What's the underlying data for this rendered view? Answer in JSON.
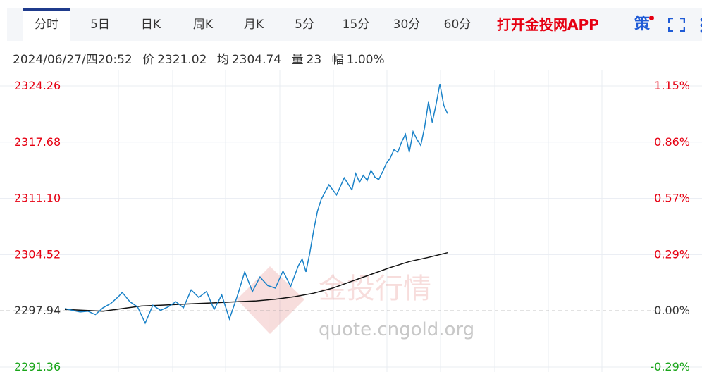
{
  "tabs": [
    {
      "label": "分时",
      "active": true
    },
    {
      "label": "5日",
      "active": false
    },
    {
      "label": "日K",
      "active": false
    },
    {
      "label": "周K",
      "active": false
    },
    {
      "label": "月K",
      "active": false
    },
    {
      "label": "5分",
      "active": false
    },
    {
      "label": "15分",
      "active": false
    },
    {
      "label": "30分",
      "active": false
    },
    {
      "label": "60分",
      "active": false
    }
  ],
  "promo_label": "打开金投网APP",
  "strategy_label": "策",
  "info": {
    "datetime": "2024/06/27/四20:52",
    "price_label": "价",
    "price": "2321.02",
    "avg_label": "均",
    "avg": "2304.74",
    "volume_label": "量",
    "volume": "23",
    "change_label": "幅",
    "change": "1.00%"
  },
  "watermark": {
    "brand": "金投行情",
    "url": "quote.cngold.org"
  },
  "colors": {
    "price_line": "#1a82c8",
    "avg_line": "#111111",
    "up": "#e60012",
    "down": "#1aa51a",
    "grid": "#e8ecf2",
    "baseline": "#8a8a8a"
  },
  "chart_data": {
    "type": "line",
    "title": "",
    "xlabel": "",
    "ylabel": "",
    "ylim": [
      2291.36,
      2324.26
    ],
    "y_ticks_left": [
      "2324.26",
      "2317.68",
      "2311.10",
      "2304.52",
      "2297.94",
      "2291.36"
    ],
    "y_ticks_right": [
      "1.15%",
      "0.86%",
      "0.57%",
      "0.29%",
      "0.00%",
      "-0.29%"
    ],
    "y_tick_values": [
      2324.26,
      2317.68,
      2311.1,
      2304.52,
      2297.94,
      2291.36
    ],
    "baseline": 2297.94,
    "x_range": [
      0,
      100
    ],
    "series": [
      {
        "key": "price",
        "x": [
          0,
          2,
          4,
          6,
          8,
          10,
          12,
          14,
          15,
          17,
          19,
          21,
          23,
          25,
          27,
          29,
          31,
          33,
          35,
          37,
          39,
          41,
          43,
          45,
          47,
          49,
          51,
          53,
          55,
          57,
          59,
          61,
          62,
          63,
          64,
          65,
          66,
          67,
          69,
          71,
          73,
          75,
          76,
          77,
          78,
          79,
          80,
          81,
          82,
          83,
          84,
          85,
          86,
          87,
          88,
          89,
          90,
          91,
          92,
          93,
          94,
          95,
          96,
          97,
          98,
          99,
          100
        ],
        "values": [
          2298.2,
          2298.0,
          2297.8,
          2297.9,
          2297.5,
          2298.3,
          2298.8,
          2299.6,
          2300.1,
          2299.0,
          2298.4,
          2296.5,
          2298.6,
          2298.0,
          2298.4,
          2299.0,
          2298.3,
          2300.4,
          2299.5,
          2300.2,
          2298.1,
          2299.8,
          2297.0,
          2299.6,
          2302.5,
          2300.2,
          2301.9,
          2300.9,
          2300.6,
          2302.6,
          2300.8,
          2303.2,
          2304.0,
          2302.5,
          2304.7,
          2307.3,
          2309.6,
          2311.0,
          2312.7,
          2311.5,
          2313.5,
          2312.1,
          2314.0,
          2313.0,
          2313.8,
          2313.2,
          2314.4,
          2313.6,
          2313.3,
          2314.2,
          2315.2,
          2315.8,
          2316.8,
          2316.5,
          2317.7,
          2318.6,
          2316.5,
          2318.9,
          2318.0,
          2317.3,
          2319.4,
          2322.4,
          2320.0,
          2322.1,
          2324.5,
          2322.0,
          2321.02
        ]
      },
      {
        "key": "avg",
        "x": [
          0,
          5,
          10,
          15,
          20,
          25,
          30,
          35,
          40,
          45,
          50,
          55,
          60,
          65,
          70,
          75,
          80,
          85,
          90,
          95,
          100
        ],
        "values": [
          2298.1,
          2298.0,
          2297.9,
          2298.2,
          2298.5,
          2298.6,
          2298.7,
          2298.8,
          2298.9,
          2299.0,
          2299.1,
          2299.3,
          2299.6,
          2300.0,
          2300.6,
          2301.4,
          2302.2,
          2303.0,
          2303.7,
          2304.2,
          2304.74
        ]
      }
    ]
  }
}
